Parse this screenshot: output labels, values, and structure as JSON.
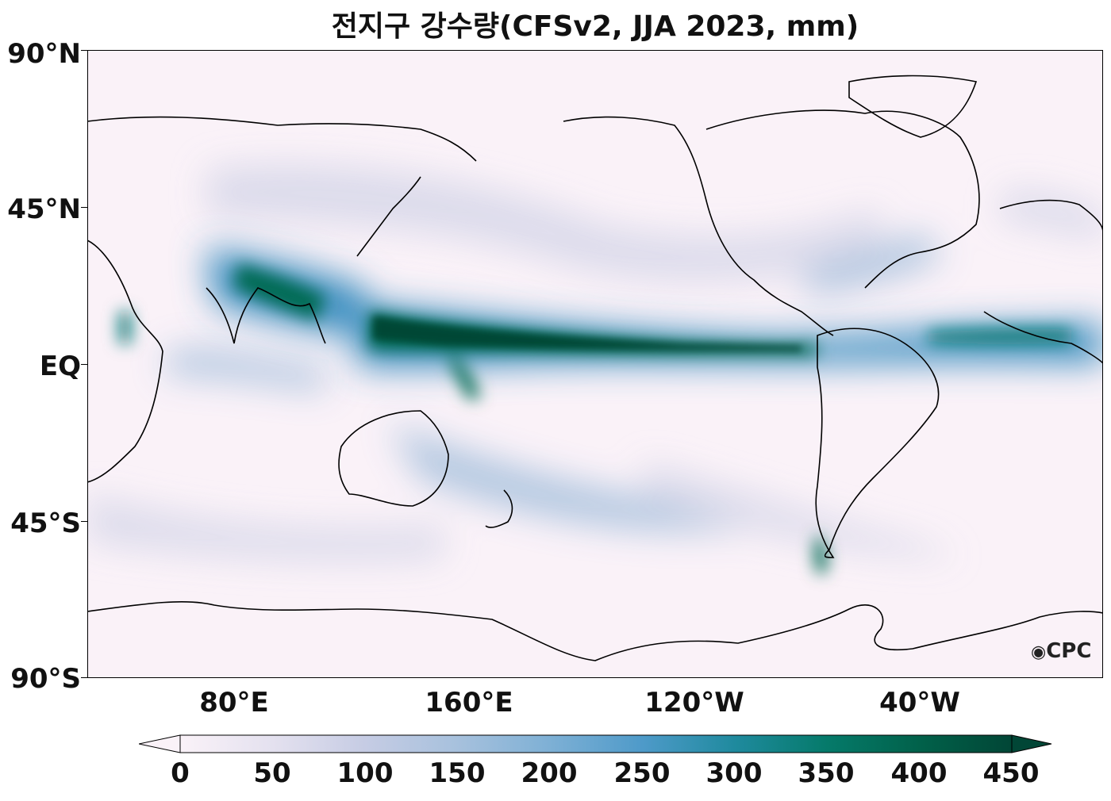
{
  "title": "전지구 강수량(CFSv2, JJA 2023, mm)",
  "logo_text": "CPC",
  "lat_labels": [
    "90°N",
    "45°N",
    "EQ",
    "45°S",
    "90°S"
  ],
  "lon_labels": [
    "80°E",
    "160°E",
    "120°W",
    "40°W"
  ],
  "colorbar": {
    "ticks": [
      "0",
      "50",
      "100",
      "150",
      "200",
      "250",
      "300",
      "350",
      "400",
      "450"
    ],
    "colors": [
      "#faf2f8",
      "#d9d9ea",
      "#a7c1dd",
      "#6aa8d2",
      "#3b8ec0",
      "#1f7f9e",
      "#0b7a78",
      "#036a53",
      "#014636"
    ],
    "extend": "both",
    "cmap": "PuBuGn"
  },
  "chart_data": {
    "type": "heatmap",
    "title": "전지구 강수량(CFSv2, JJA 2023, mm)",
    "variable": "precipitation",
    "units": "mm",
    "vmin": 0,
    "vmax": 450,
    "x_ticks": [
      "80°E",
      "160°E",
      "120°W",
      "40°W"
    ],
    "y_ticks": [
      "90°N",
      "45°N",
      "EQ",
      "45°S",
      "90°S"
    ]
  }
}
